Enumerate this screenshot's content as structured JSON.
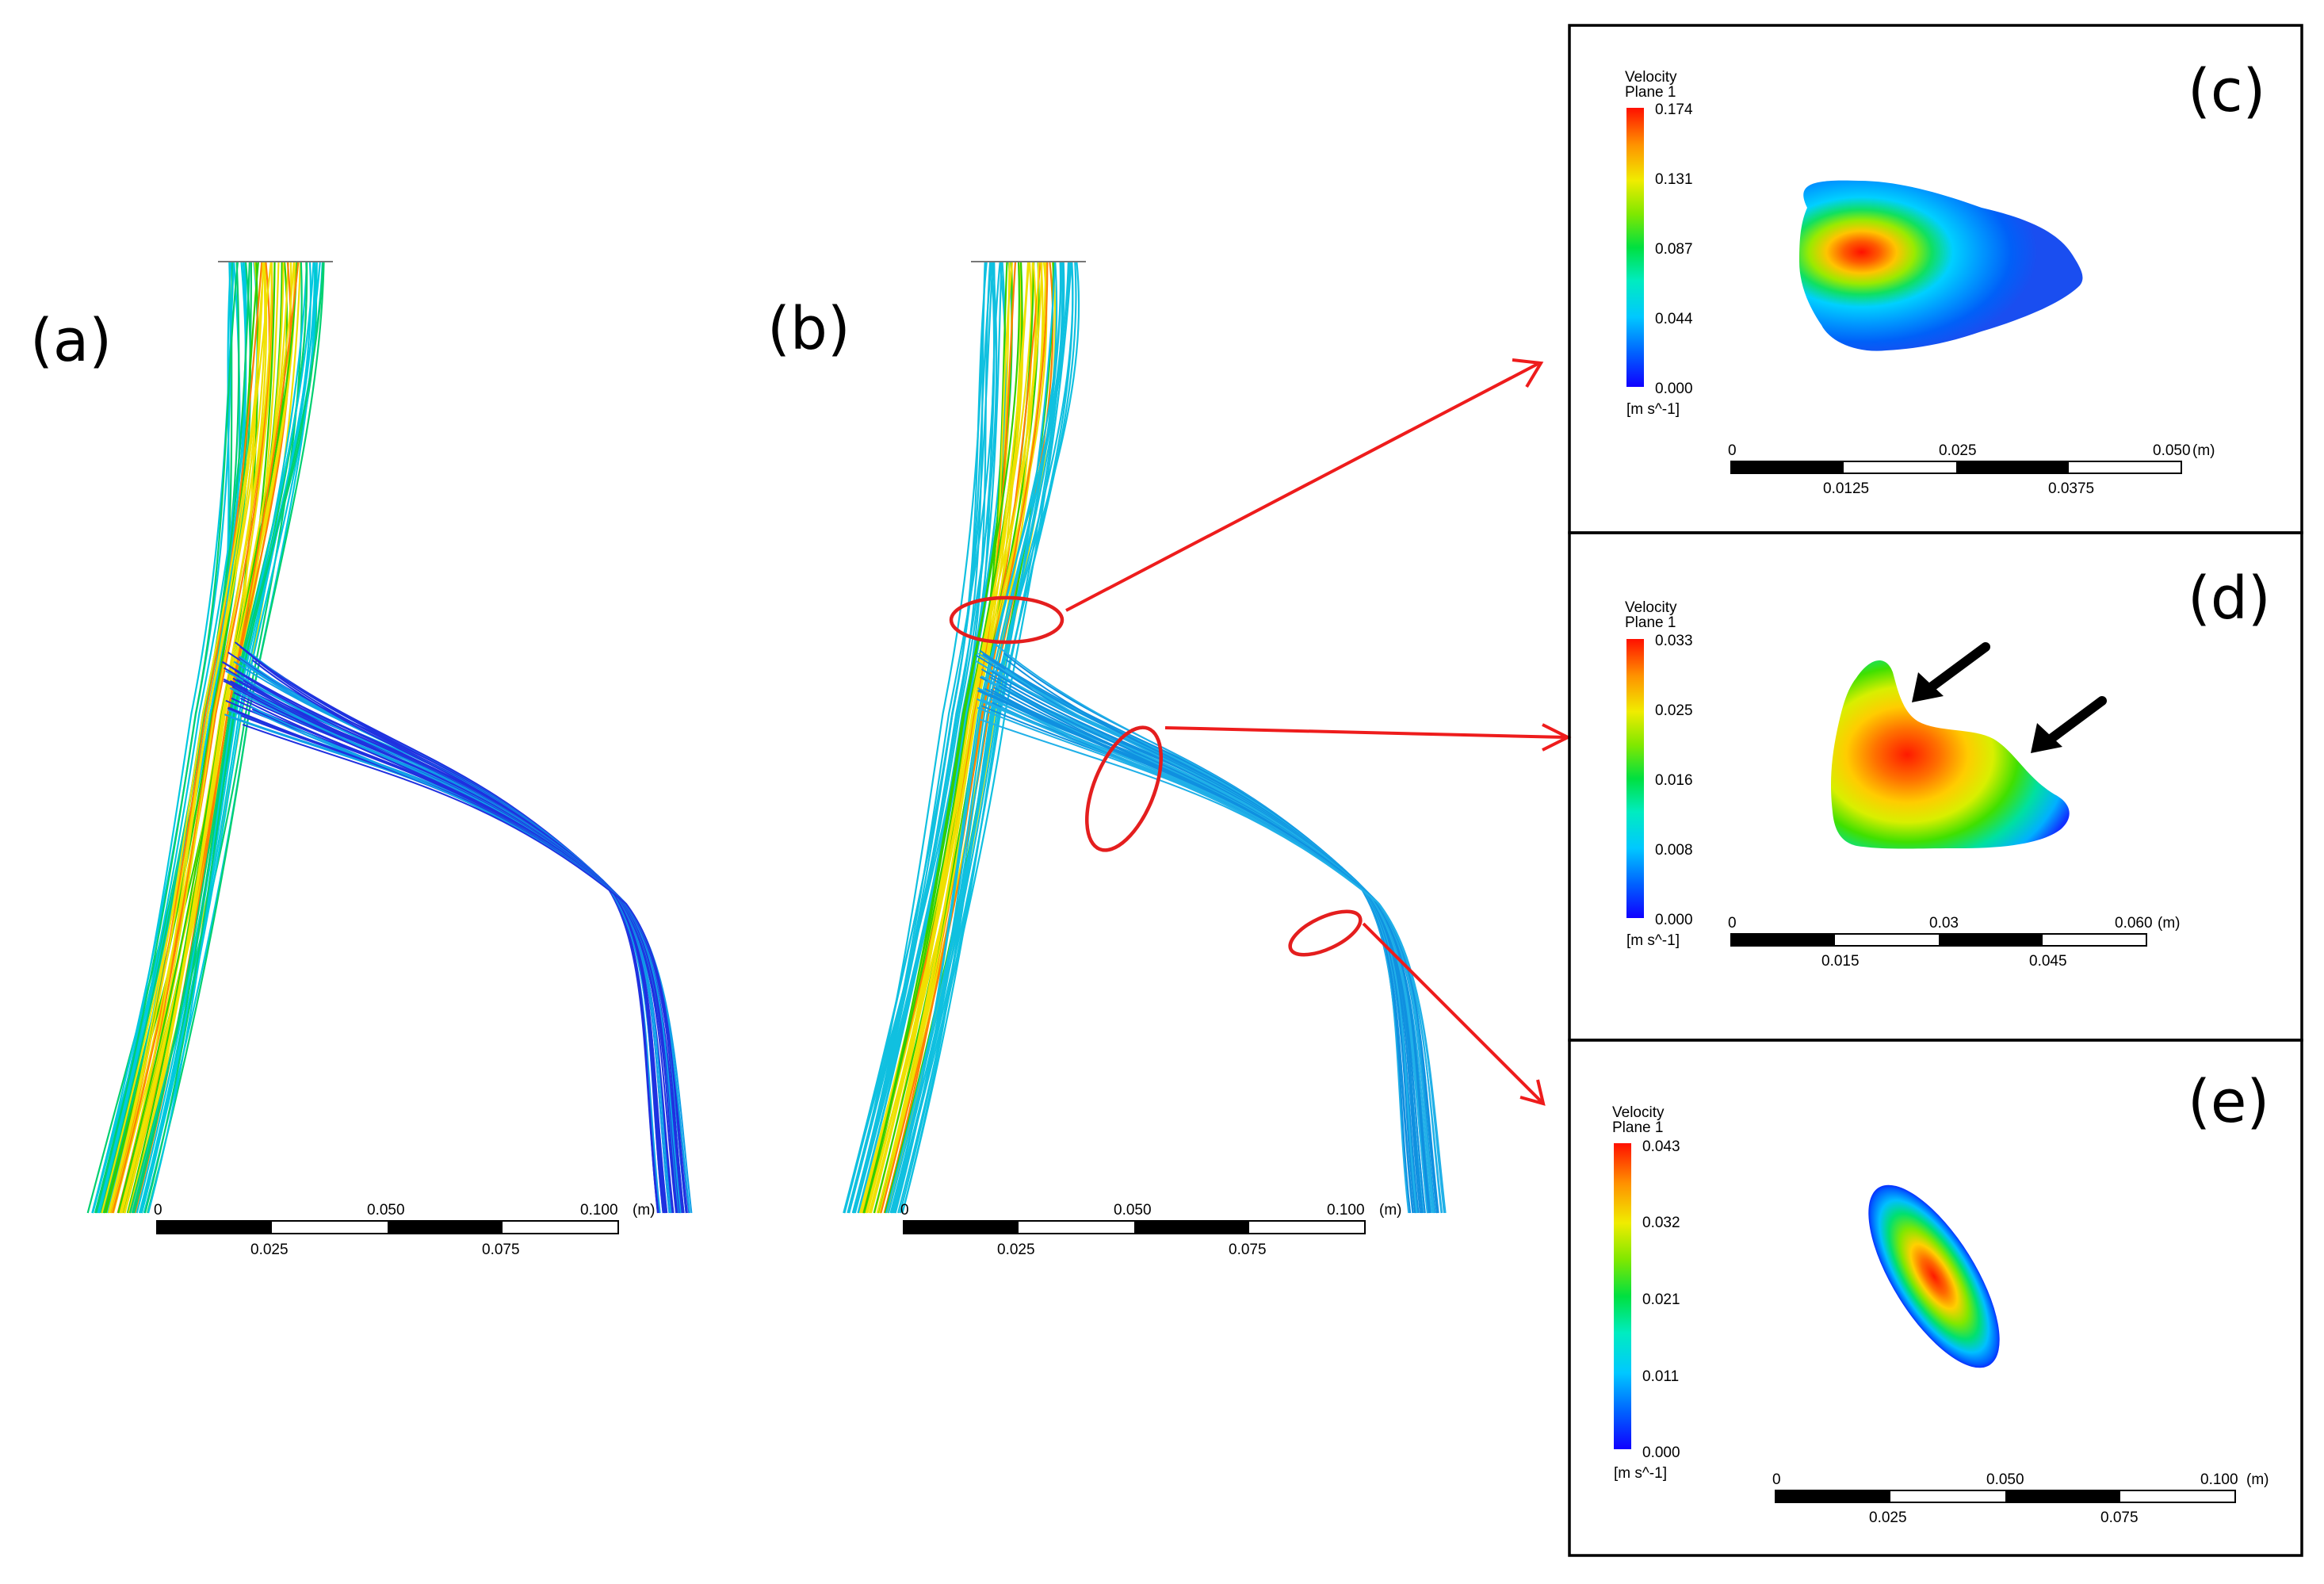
{
  "panels": {
    "a": {
      "label": "(a)"
    },
    "b": {
      "label": "(b)"
    },
    "c": {
      "label": "(c)"
    },
    "d": {
      "label": "(d)"
    },
    "e": {
      "label": "(e)"
    }
  },
  "streamline_scale": {
    "top_ticks": [
      "0",
      "0.050",
      "0.100"
    ],
    "bottom_ticks": [
      "0.025",
      "0.075"
    ],
    "unit": "(m)"
  },
  "contours": {
    "c": {
      "title": "Velocity",
      "subtitle": "Plane 1",
      "ticks": [
        "0.174",
        "0.131",
        "0.087",
        "0.044",
        "0.000"
      ],
      "unit": "[m s^-1]",
      "scale_top": [
        "0",
        "0.025",
        "0.050"
      ],
      "scale_bottom": [
        "0.0125",
        "0.0375"
      ],
      "scale_unit": "(m)"
    },
    "d": {
      "title": "Velocity",
      "subtitle": "Plane 1",
      "ticks": [
        "0.033",
        "0.025",
        "0.016",
        "0.008",
        "0.000"
      ],
      "unit": "[m s^-1]",
      "scale_top": [
        "0",
        "0.03",
        "0.060"
      ],
      "scale_bottom": [
        "0.015",
        "0.045"
      ],
      "scale_unit": "(m)"
    },
    "e": {
      "title": "Velocity",
      "subtitle": "Plane 1",
      "ticks": [
        "0.043",
        "0.032",
        "0.021",
        "0.011",
        "0.000"
      ],
      "unit": "[m s^-1]",
      "scale_top": [
        "0",
        "0.050",
        "0.100"
      ],
      "scale_bottom": [
        "0.025",
        "0.075"
      ],
      "scale_unit": "(m)"
    }
  },
  "colors": {
    "arrow_red": "#ee1c1c",
    "ellipse_red": "#e41e1e",
    "frame": "#000000",
    "colormap": [
      "#1000ff",
      "#0080ff",
      "#00e5ff",
      "#00e87a",
      "#3ad300",
      "#c8ee00",
      "#ffd000",
      "#ff7a00",
      "#ff1a00"
    ]
  }
}
